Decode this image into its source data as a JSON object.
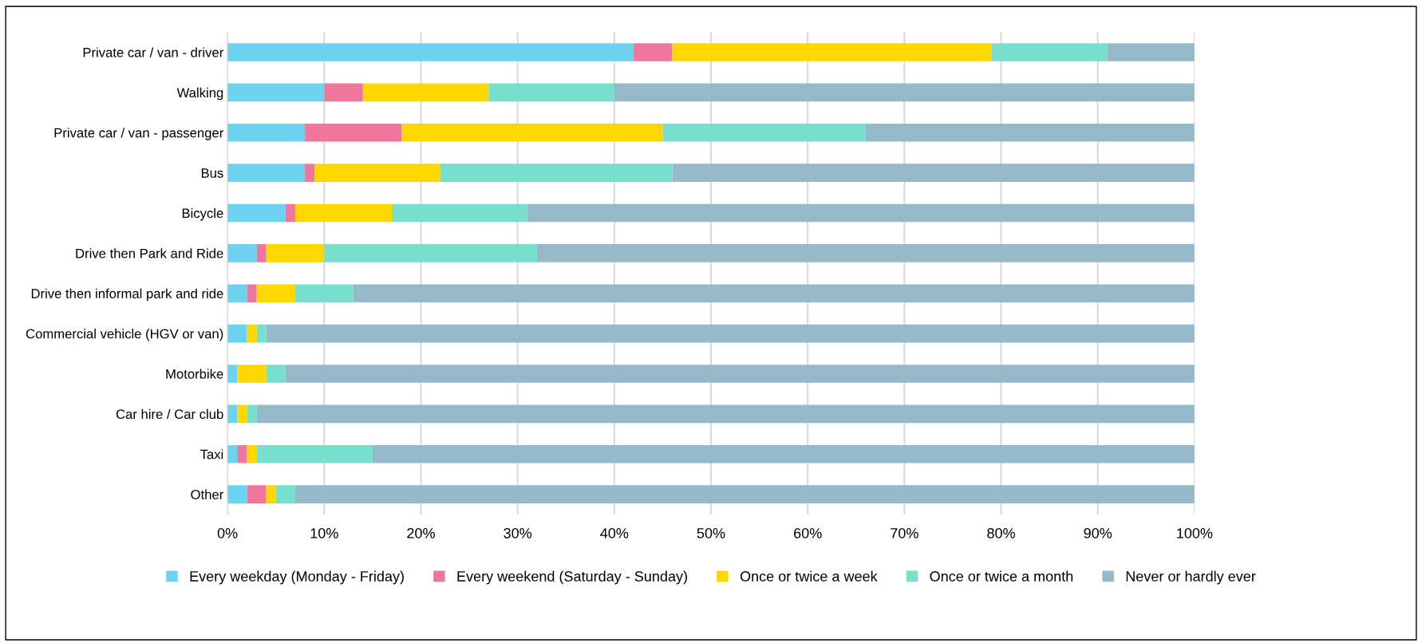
{
  "chart_data": {
    "type": "bar",
    "orientation": "horizontal",
    "stacked": true,
    "categories": [
      "Private car / van - driver",
      "Walking",
      "Private car / van - passenger",
      "Bus",
      "Bicycle",
      "Drive then Park and Ride",
      "Drive then informal park and ride",
      "Commercial vehicle (HGV or van)",
      "Motorbike",
      "Car hire / Car club",
      "Taxi",
      "Other"
    ],
    "series": [
      {
        "name": "Every weekday (Monday - Friday)",
        "color": "#6dd3f1",
        "values": [
          42,
          10,
          8,
          8,
          6,
          3,
          2,
          2,
          1,
          1,
          1,
          2
        ]
      },
      {
        "name": "Every weekend (Saturday - Sunday)",
        "color": "#ef779e",
        "values": [
          4,
          4,
          10,
          1,
          1,
          1,
          1,
          0,
          0,
          0,
          1,
          2
        ]
      },
      {
        "name": "Once or twice a week",
        "color": "#ffd700",
        "values": [
          33,
          13,
          27,
          13,
          10,
          6,
          4,
          1,
          3,
          1,
          1,
          1
        ]
      },
      {
        "name": "Once or twice a month",
        "color": "#79dfcd",
        "values": [
          12,
          13,
          21,
          24,
          14,
          22,
          6,
          1,
          2,
          1,
          12,
          2
        ]
      },
      {
        "name": "Never or hardly ever",
        "color": "#96b9c9",
        "values": [
          9,
          60,
          34,
          54,
          69,
          68,
          87,
          96,
          94,
          97,
          85,
          93
        ]
      }
    ],
    "xlim": [
      0,
      100
    ],
    "xticks": [
      {
        "value": 0,
        "label": "0%"
      },
      {
        "value": 10,
        "label": "10%"
      },
      {
        "value": 20,
        "label": "20%"
      },
      {
        "value": 30,
        "label": "30%"
      },
      {
        "value": 40,
        "label": "40%"
      },
      {
        "value": 50,
        "label": "50%"
      },
      {
        "value": 60,
        "label": "60%"
      },
      {
        "value": 70,
        "label": "70%"
      },
      {
        "value": 80,
        "label": "80%"
      },
      {
        "value": 90,
        "label": "90%"
      },
      {
        "value": 100,
        "label": "100%"
      }
    ],
    "grid": "x",
    "legend": "bottom"
  }
}
